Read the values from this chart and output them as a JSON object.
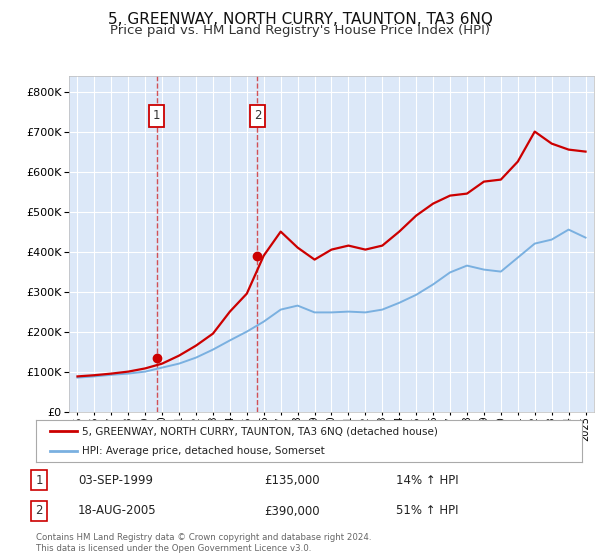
{
  "title": "5, GREENWAY, NORTH CURRY, TAUNTON, TA3 6NQ",
  "subtitle": "Price paid vs. HM Land Registry's House Price Index (HPI)",
  "title_fontsize": 11,
  "subtitle_fontsize": 9.5,
  "background_color": "#ffffff",
  "plot_bg_color": "#dce8f8",
  "grid_color": "#ffffff",
  "sale1_year": 1999.67,
  "sale1_price": 135000,
  "sale2_year": 2005.63,
  "sale2_price": 390000,
  "legend_house": "5, GREENWAY, NORTH CURRY, TAUNTON, TA3 6NQ (detached house)",
  "legend_hpi": "HPI: Average price, detached house, Somerset",
  "footnote": "Contains HM Land Registry data © Crown copyright and database right 2024.\nThis data is licensed under the Open Government Licence v3.0.",
  "sale_info": [
    {
      "label": "1",
      "date": "03-SEP-1999",
      "price": "£135,000",
      "hpi": "14% ↑ HPI"
    },
    {
      "label": "2",
      "date": "18-AUG-2005",
      "price": "£390,000",
      "hpi": "51% ↑ HPI"
    }
  ],
  "years": [
    1995,
    1996,
    1997,
    1998,
    1999,
    2000,
    2001,
    2002,
    2003,
    2004,
    2005,
    2006,
    2007,
    2008,
    2009,
    2010,
    2011,
    2012,
    2013,
    2014,
    2015,
    2016,
    2017,
    2018,
    2019,
    2020,
    2021,
    2022,
    2023,
    2024,
    2025
  ],
  "hpi_values": [
    85000,
    88000,
    92000,
    95000,
    100000,
    110000,
    120000,
    135000,
    155000,
    178000,
    200000,
    225000,
    255000,
    265000,
    248000,
    248000,
    250000,
    248000,
    255000,
    272000,
    292000,
    318000,
    348000,
    365000,
    355000,
    350000,
    385000,
    420000,
    430000,
    455000,
    435000
  ],
  "house_values": [
    88000,
    91000,
    95000,
    100000,
    108000,
    120000,
    140000,
    165000,
    195000,
    250000,
    295000,
    390000,
    450000,
    410000,
    380000,
    405000,
    415000,
    405000,
    415000,
    450000,
    490000,
    520000,
    540000,
    545000,
    575000,
    580000,
    625000,
    700000,
    670000,
    655000,
    650000
  ],
  "ylim": [
    0,
    840000
  ],
  "yticks": [
    0,
    100000,
    200000,
    300000,
    400000,
    500000,
    600000,
    700000,
    800000
  ]
}
